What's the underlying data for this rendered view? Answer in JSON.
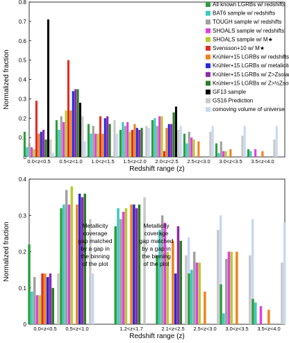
{
  "colors": {
    "all": "#2e9e3f",
    "bat6": "#3ec9c0",
    "tough": "#a0a0a0",
    "shoals": "#e23ee0",
    "shoals_m": "#b5cc2c",
    "svensson": "#e32d20",
    "k_red": "#f0821e",
    "k_met": "#2727d8",
    "k_z": "#8e2aa8",
    "k_hz": "#2d7d2a",
    "gf13": "#000000",
    "gs16": "#c8c8c8",
    "comoving": "#c8d8f4"
  },
  "chart_data": [
    {
      "type": "bar",
      "xlabel": "Redshift range (z)",
      "ylabel": "Normalized fraction",
      "ylim": [
        0,
        0.8
      ],
      "yticks": [
        "0",
        "0.1",
        "0.2",
        "0.3",
        "0.4",
        "0.5",
        "0.6",
        "0.7",
        "0.8"
      ],
      "categories": [
        "0.0<z<0.5",
        "0.5<z<1.0",
        "1.0<z<1.5",
        "1.5<z<2.0",
        "2.0<z<2.5",
        "2.5<z<3.0",
        "3.0<z<3.5",
        "3.5<z<4.0"
      ],
      "legend_position": "top-right",
      "series": [
        {
          "name": "All known LGRBs w/ redshifts",
          "color_key": "all",
          "values": [
            0.13,
            0.19,
            0.17,
            0.14,
            0.19,
            0.12,
            0.07,
            0.04
          ]
        },
        {
          "name": "BAT6 sample w/ redshifts",
          "color_key": "bat6",
          "values": [
            0.05,
            0.14,
            0.12,
            0.18,
            0.2,
            0.07,
            0.02,
            0.03
          ]
        },
        {
          "name": "TOUGH sample w/ redshifts",
          "color_key": "tough",
          "values": [
            0.07,
            0.21,
            0.16,
            0.16,
            0.16,
            0.13,
            0.08,
            0.0
          ]
        },
        {
          "name": "SHOALS sample w/ redshifts",
          "color_key": "shoals",
          "values": [
            0.05,
            0.18,
            0.12,
            0.18,
            0.21,
            0.1,
            0.03,
            0.04
          ]
        },
        {
          "name": "SHOALS sample w/ M★",
          "color_key": "shoals_m",
          "values": [
            0.04,
            0.24,
            0.12,
            0.13,
            0.21,
            0.09,
            0.03,
            0.0
          ]
        },
        {
          "name": "Svensson+10 w/ M★",
          "color_key": "svensson",
          "values": [
            0.29,
            0.5,
            0.21,
            0.14,
            0.03,
            0.0,
            0.0,
            0.0
          ]
        },
        {
          "name": "Krühler+15 LGRBs w/ redshifts",
          "color_key": "k_red",
          "values": [
            0.12,
            0.24,
            0.12,
            0.17,
            0.15,
            0.08,
            0.04,
            0.03
          ]
        },
        {
          "name": "Krühler+15 LGRBs w/ metalicites",
          "color_key": "k_met",
          "values": [
            0.13,
            0.34,
            0.2,
            0.15,
            0.17,
            0.0,
            0.0,
            0.0
          ]
        },
        {
          "name": "Krühler+15 LGRBs w/ Z>Zsolar",
          "color_key": "k_z",
          "values": [
            0.14,
            0.35,
            0.21,
            0.14,
            0.17,
            0.0,
            0.0,
            0.0
          ]
        },
        {
          "name": "Krühler+15 LGRBs w/ Z>½Zsolar",
          "color_key": "k_hz",
          "values": [
            0.09,
            0.35,
            0.17,
            0.15,
            0.23,
            0.0,
            0.0,
            0.0
          ]
        },
        {
          "name": "GF13 sample",
          "color_key": "gf13",
          "values": [
            0.71,
            0.28,
            0.0,
            0.0,
            0.26,
            0.0,
            0.0,
            0.0
          ]
        },
        {
          "name": "GS16 Prediction",
          "color_key": "gs16",
          "values": [
            0.09,
            0.21,
            0.19,
            0.16,
            0.14,
            0.13,
            0.11,
            0.09
          ]
        },
        {
          "name": "comoving volume of universe",
          "color_key": "comoving",
          "values": [
            0.02,
            0.08,
            0.12,
            0.15,
            0.16,
            0.16,
            0.16,
            0.16
          ]
        }
      ]
    },
    {
      "type": "bar",
      "xlabel": "Redshift range (z)",
      "ylabel": "Normalized fraction",
      "ylim": [
        0,
        0.4
      ],
      "yticks": [
        "0",
        "0.1",
        "0.2",
        "0.3",
        "0.4"
      ],
      "categories": [
        "0.0<z<0.5",
        "0.5<z<1.0",
        "1.2<z<1.7",
        "2.1<z<2.5",
        "2.5<z<3.0",
        "3.0<z<3.5",
        "3.5<z<4.0"
      ],
      "category_positions": [
        0,
        1,
        2.7,
        4,
        5,
        6,
        7
      ],
      "annotations": [
        "Metallicity coverage gap matched by a gap in the binning of the plot",
        "Metallicity coverage gap matched by a gap in the binning of the plot"
      ],
      "series": [
        {
          "name": "All known LGRBs w/ redshifts",
          "color_key": "all",
          "values": [
            0.22,
            0.32,
            0.27,
            0.19,
            0.14,
            0.11,
            0.07
          ]
        },
        {
          "name": "BAT6 sample w/ redshifts",
          "color_key": "bat6",
          "values": [
            0.09,
            0.33,
            0.32,
            0.26,
            0.15,
            0.03,
            0.06
          ]
        },
        {
          "name": "TOUGH sample w/ redshifts",
          "color_key": "tough",
          "values": [
            0.13,
            0.37,
            0.29,
            0.3,
            0.2,
            0.18,
            0.0
          ]
        },
        {
          "name": "SHOALS sample w/ redshifts",
          "color_key": "shoals",
          "values": [
            0.08,
            0.33,
            0.31,
            0.28,
            0.17,
            0.2,
            0.05
          ]
        },
        {
          "name": "SHOALS sample w/ M★",
          "color_key": "shoals_m",
          "values": [
            0.08,
            0.38,
            0.32,
            0.2,
            0.17,
            0.2,
            0.0
          ]
        },
        {
          "name": "Svensson+10 w/ M★",
          "color_key": "svensson",
          "values": [
            0.14,
            0.0,
            0.0,
            0.0,
            0.0,
            0.0,
            0.0
          ]
        },
        {
          "name": "Krühler+15 LGRBs w/ redshifts",
          "color_key": "k_red",
          "values": [
            0.14,
            0.33,
            0.33,
            0.23,
            0.09,
            0.2,
            0.04
          ]
        },
        {
          "name": "Krühler+15 LGRBs w/ metalicites",
          "color_key": "k_met",
          "values": [
            0.13,
            0.36,
            0.33,
            0.14,
            0.0,
            0.0,
            0.0
          ]
        },
        {
          "name": "Krühler+15 LGRBs w/ Z>Zsolar",
          "color_key": "k_z",
          "values": [
            0.14,
            0.35,
            0.32,
            0.27,
            0.0,
            0.0,
            0.0
          ]
        },
        {
          "name": "Krühler+15 LGRBs w/ Z>½Zsolar",
          "color_key": "k_hz",
          "values": [
            0.1,
            0.36,
            0.33,
            0.23,
            0.0,
            0.0,
            0.0
          ]
        },
        {
          "name": "GF13 sample",
          "color_key": "gf13",
          "values": [
            0.0,
            0.0,
            0.0,
            0.0,
            0.0,
            0.0,
            0.0
          ]
        },
        {
          "name": "GS16 Prediction",
          "color_key": "gs16",
          "values": [
            0.14,
            0.29,
            0.35,
            0.19,
            0.26,
            0.19,
            0.17
          ]
        },
        {
          "name": "comoving volume of universe",
          "color_key": "comoving",
          "values": [
            0.15,
            0.14,
            0.0,
            0.24,
            0.3,
            0.29,
            0.28
          ]
        }
      ]
    }
  ]
}
